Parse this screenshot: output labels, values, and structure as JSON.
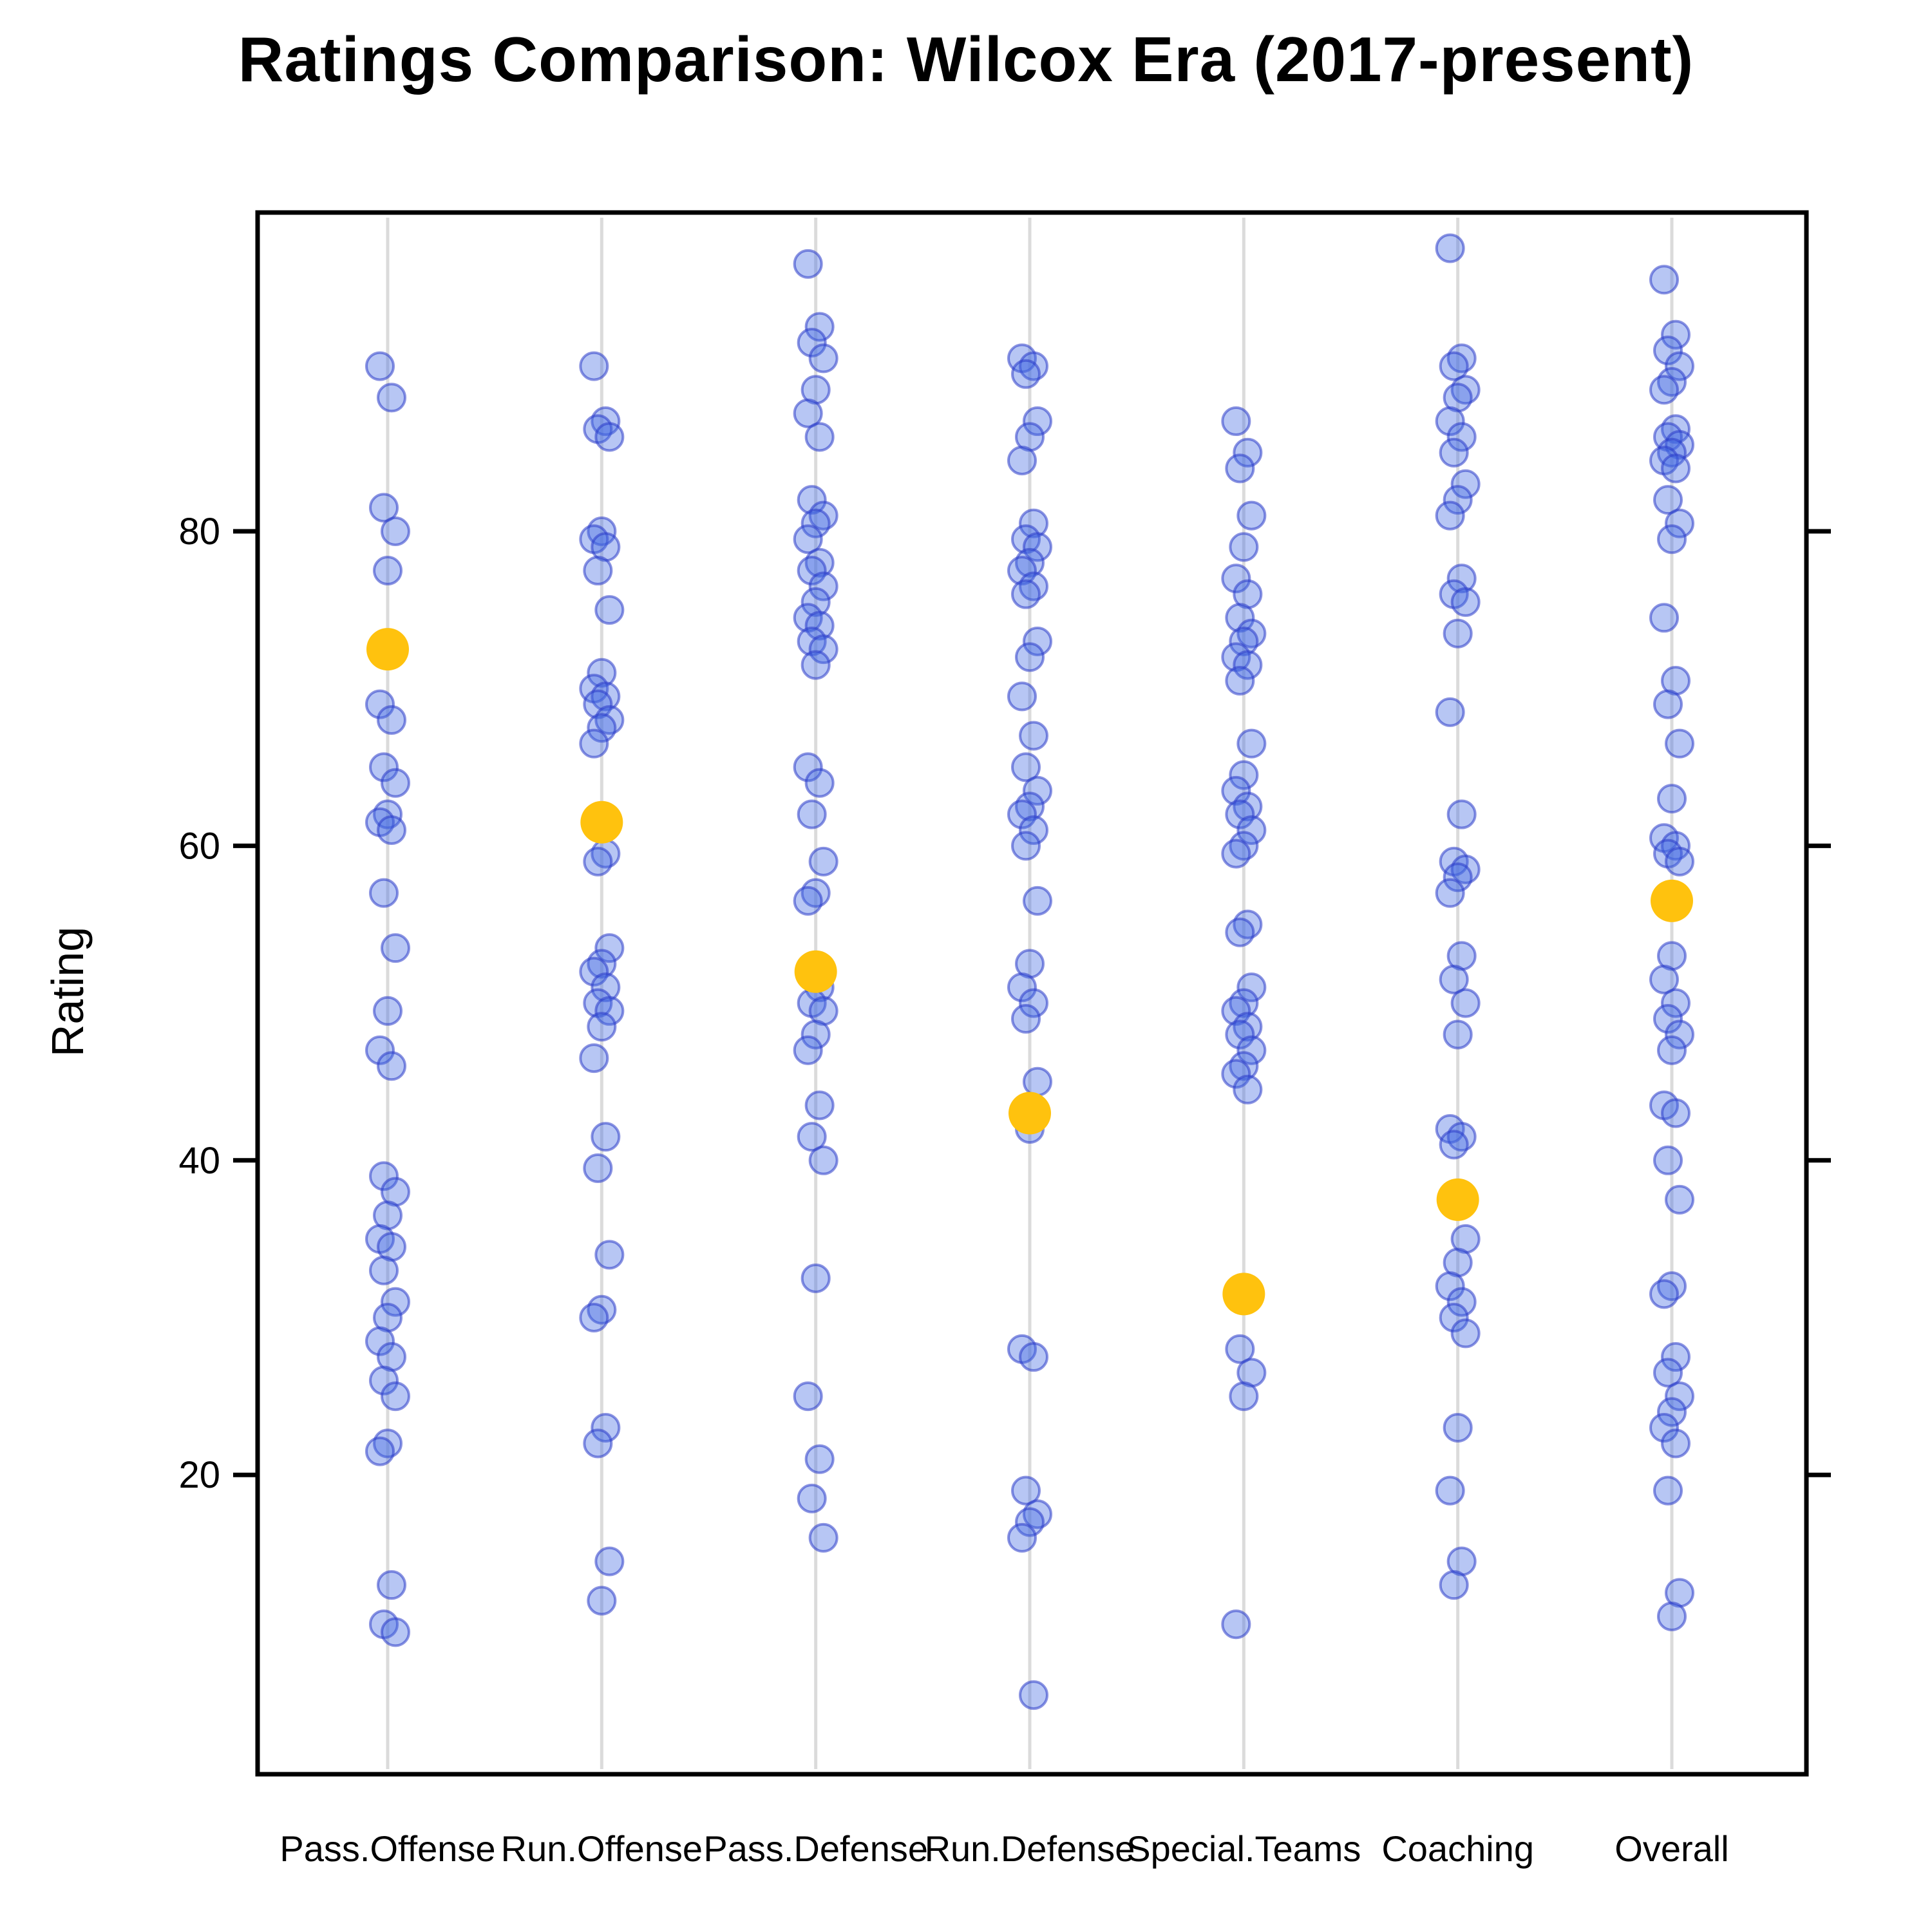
{
  "title": "Ratings Comparison: Wilcox Era (2017-present)",
  "ylabel": "Rating",
  "chart_data": {
    "type": "scatter",
    "title": "Ratings Comparison: Wilcox Era (2017-present)",
    "xlabel": "",
    "ylabel": "Rating",
    "ylim": [
      0,
      100
    ],
    "yticks": [
      20,
      40,
      60,
      80
    ],
    "grid": "vertical-guides",
    "legend": "none",
    "point_color": "#4169E1",
    "point_stroke": "#2A3BC8",
    "mean_color": "#FFC20E",
    "categories": [
      "Pass.Offense",
      "Run.Offense",
      "Pass.Defense",
      "Run.Defense",
      "Special.Teams",
      "Coaching",
      "Overall"
    ],
    "means": [
      72.5,
      61.5,
      52,
      43,
      31.5,
      37.5,
      56.5
    ],
    "series": [
      {
        "name": "Pass.Offense",
        "values": [
          90.5,
          88.5,
          81.5,
          80,
          77.5,
          69,
          68,
          65,
          64,
          62,
          61.5,
          61,
          57,
          53.5,
          49.5,
          47,
          46,
          39,
          38,
          36.5,
          35,
          34.5,
          33,
          31,
          30,
          28.5,
          27.5,
          26,
          25,
          22,
          21.5,
          13,
          10.5,
          10
        ]
      },
      {
        "name": "Run.Offense",
        "values": [
          90.5,
          87,
          86.5,
          86,
          80,
          79.5,
          79,
          77.5,
          75,
          71,
          70,
          69.5,
          69,
          68,
          67.5,
          66.5,
          59.5,
          59,
          53.5,
          52.5,
          52,
          51,
          50,
          49.5,
          48.5,
          46.5,
          41.5,
          39.5,
          34,
          30.5,
          30,
          23,
          22,
          14.5,
          12
        ]
      },
      {
        "name": "Pass.Defense",
        "values": [
          97,
          93,
          92,
          91,
          89,
          87.5,
          86,
          82,
          81,
          80.5,
          79.5,
          78,
          77.5,
          76.5,
          75.5,
          74.5,
          74,
          73,
          72.5,
          71.5,
          65,
          64,
          62,
          59,
          57,
          56.5,
          51,
          50,
          49.5,
          48,
          47,
          43.5,
          41.5,
          40,
          32.5,
          25,
          21,
          18.5,
          16
        ]
      },
      {
        "name": "Run.Defense",
        "values": [
          91,
          90.5,
          90,
          87,
          86,
          84.5,
          80.5,
          79.5,
          79,
          78,
          77.5,
          76.5,
          76,
          73,
          72,
          69.5,
          67,
          65,
          63.5,
          62.5,
          62,
          61,
          60,
          56.5,
          52.5,
          51,
          50,
          49,
          45,
          42,
          28,
          27.5,
          19,
          17.5,
          17,
          16,
          6
        ]
      },
      {
        "name": "Special.Teams",
        "values": [
          87,
          85,
          84,
          81,
          79,
          77,
          76,
          74.5,
          73.5,
          73,
          72,
          71.5,
          70.5,
          66.5,
          64.5,
          63.5,
          62.5,
          62,
          61,
          60,
          59.5,
          55,
          54.5,
          51,
          50,
          49.5,
          48.5,
          48,
          47,
          46,
          45.5,
          44.5,
          28,
          26.5,
          25,
          10.5
        ]
      },
      {
        "name": "Coaching",
        "values": [
          98,
          91,
          90.5,
          89,
          88.5,
          87,
          86,
          85,
          83,
          82,
          81,
          77,
          76,
          75.5,
          73.5,
          68.5,
          62,
          59,
          58.5,
          58,
          57,
          53,
          51.5,
          50,
          48,
          42,
          41.5,
          41,
          35,
          33.5,
          32,
          31,
          30,
          29,
          23,
          19,
          14.5,
          13
        ]
      },
      {
        "name": "Overall",
        "values": [
          96,
          92.5,
          91.5,
          90.5,
          89.5,
          89,
          86.5,
          86,
          85.5,
          85,
          84.5,
          84,
          82,
          80.5,
          79.5,
          74.5,
          70.5,
          69,
          66.5,
          63,
          60.5,
          60,
          59.5,
          59,
          53,
          51.5,
          50,
          49,
          48,
          47,
          43.5,
          43,
          40,
          37.5,
          32,
          31.5,
          27.5,
          26.5,
          25,
          24,
          23,
          22,
          19,
          12.5,
          11
        ]
      }
    ]
  }
}
